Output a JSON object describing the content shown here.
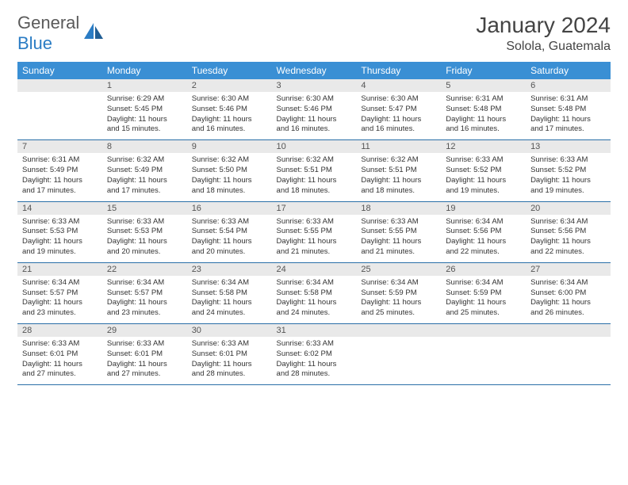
{
  "brand": {
    "general": "General",
    "blue": "Blue"
  },
  "colors": {
    "header_bg": "#3a8fd4",
    "header_text": "#ffffff",
    "daynum_bg": "#e9e9e9",
    "row_divider": "#2a6fa8",
    "text": "#333333",
    "brand_gray": "#5a5a5a",
    "brand_blue": "#2a7cc4"
  },
  "typography": {
    "title_fontsize": 28,
    "location_fontsize": 16,
    "header_fontsize": 12,
    "daynum_fontsize": 11,
    "detail_fontsize": 9.5
  },
  "title": "January 2024",
  "location": "Solola, Guatemala",
  "daysOfWeek": [
    "Sunday",
    "Monday",
    "Tuesday",
    "Wednesday",
    "Thursday",
    "Friday",
    "Saturday"
  ],
  "weeks": [
    {
      "nums": [
        "",
        "1",
        "2",
        "3",
        "4",
        "5",
        "6"
      ],
      "details": [
        [],
        [
          "Sunrise: 6:29 AM",
          "Sunset: 5:45 PM",
          "Daylight: 11 hours",
          "and 15 minutes."
        ],
        [
          "Sunrise: 6:30 AM",
          "Sunset: 5:46 PM",
          "Daylight: 11 hours",
          "and 16 minutes."
        ],
        [
          "Sunrise: 6:30 AM",
          "Sunset: 5:46 PM",
          "Daylight: 11 hours",
          "and 16 minutes."
        ],
        [
          "Sunrise: 6:30 AM",
          "Sunset: 5:47 PM",
          "Daylight: 11 hours",
          "and 16 minutes."
        ],
        [
          "Sunrise: 6:31 AM",
          "Sunset: 5:48 PM",
          "Daylight: 11 hours",
          "and 16 minutes."
        ],
        [
          "Sunrise: 6:31 AM",
          "Sunset: 5:48 PM",
          "Daylight: 11 hours",
          "and 17 minutes."
        ]
      ]
    },
    {
      "nums": [
        "7",
        "8",
        "9",
        "10",
        "11",
        "12",
        "13"
      ],
      "details": [
        [
          "Sunrise: 6:31 AM",
          "Sunset: 5:49 PM",
          "Daylight: 11 hours",
          "and 17 minutes."
        ],
        [
          "Sunrise: 6:32 AM",
          "Sunset: 5:49 PM",
          "Daylight: 11 hours",
          "and 17 minutes."
        ],
        [
          "Sunrise: 6:32 AM",
          "Sunset: 5:50 PM",
          "Daylight: 11 hours",
          "and 18 minutes."
        ],
        [
          "Sunrise: 6:32 AM",
          "Sunset: 5:51 PM",
          "Daylight: 11 hours",
          "and 18 minutes."
        ],
        [
          "Sunrise: 6:32 AM",
          "Sunset: 5:51 PM",
          "Daylight: 11 hours",
          "and 18 minutes."
        ],
        [
          "Sunrise: 6:33 AM",
          "Sunset: 5:52 PM",
          "Daylight: 11 hours",
          "and 19 minutes."
        ],
        [
          "Sunrise: 6:33 AM",
          "Sunset: 5:52 PM",
          "Daylight: 11 hours",
          "and 19 minutes."
        ]
      ]
    },
    {
      "nums": [
        "14",
        "15",
        "16",
        "17",
        "18",
        "19",
        "20"
      ],
      "details": [
        [
          "Sunrise: 6:33 AM",
          "Sunset: 5:53 PM",
          "Daylight: 11 hours",
          "and 19 minutes."
        ],
        [
          "Sunrise: 6:33 AM",
          "Sunset: 5:53 PM",
          "Daylight: 11 hours",
          "and 20 minutes."
        ],
        [
          "Sunrise: 6:33 AM",
          "Sunset: 5:54 PM",
          "Daylight: 11 hours",
          "and 20 minutes."
        ],
        [
          "Sunrise: 6:33 AM",
          "Sunset: 5:55 PM",
          "Daylight: 11 hours",
          "and 21 minutes."
        ],
        [
          "Sunrise: 6:33 AM",
          "Sunset: 5:55 PM",
          "Daylight: 11 hours",
          "and 21 minutes."
        ],
        [
          "Sunrise: 6:34 AM",
          "Sunset: 5:56 PM",
          "Daylight: 11 hours",
          "and 22 minutes."
        ],
        [
          "Sunrise: 6:34 AM",
          "Sunset: 5:56 PM",
          "Daylight: 11 hours",
          "and 22 minutes."
        ]
      ]
    },
    {
      "nums": [
        "21",
        "22",
        "23",
        "24",
        "25",
        "26",
        "27"
      ],
      "details": [
        [
          "Sunrise: 6:34 AM",
          "Sunset: 5:57 PM",
          "Daylight: 11 hours",
          "and 23 minutes."
        ],
        [
          "Sunrise: 6:34 AM",
          "Sunset: 5:57 PM",
          "Daylight: 11 hours",
          "and 23 minutes."
        ],
        [
          "Sunrise: 6:34 AM",
          "Sunset: 5:58 PM",
          "Daylight: 11 hours",
          "and 24 minutes."
        ],
        [
          "Sunrise: 6:34 AM",
          "Sunset: 5:58 PM",
          "Daylight: 11 hours",
          "and 24 minutes."
        ],
        [
          "Sunrise: 6:34 AM",
          "Sunset: 5:59 PM",
          "Daylight: 11 hours",
          "and 25 minutes."
        ],
        [
          "Sunrise: 6:34 AM",
          "Sunset: 5:59 PM",
          "Daylight: 11 hours",
          "and 25 minutes."
        ],
        [
          "Sunrise: 6:34 AM",
          "Sunset: 6:00 PM",
          "Daylight: 11 hours",
          "and 26 minutes."
        ]
      ]
    },
    {
      "nums": [
        "28",
        "29",
        "30",
        "31",
        "",
        "",
        ""
      ],
      "details": [
        [
          "Sunrise: 6:33 AM",
          "Sunset: 6:01 PM",
          "Daylight: 11 hours",
          "and 27 minutes."
        ],
        [
          "Sunrise: 6:33 AM",
          "Sunset: 6:01 PM",
          "Daylight: 11 hours",
          "and 27 minutes."
        ],
        [
          "Sunrise: 6:33 AM",
          "Sunset: 6:01 PM",
          "Daylight: 11 hours",
          "and 28 minutes."
        ],
        [
          "Sunrise: 6:33 AM",
          "Sunset: 6:02 PM",
          "Daylight: 11 hours",
          "and 28 minutes."
        ],
        [],
        [],
        []
      ]
    }
  ]
}
